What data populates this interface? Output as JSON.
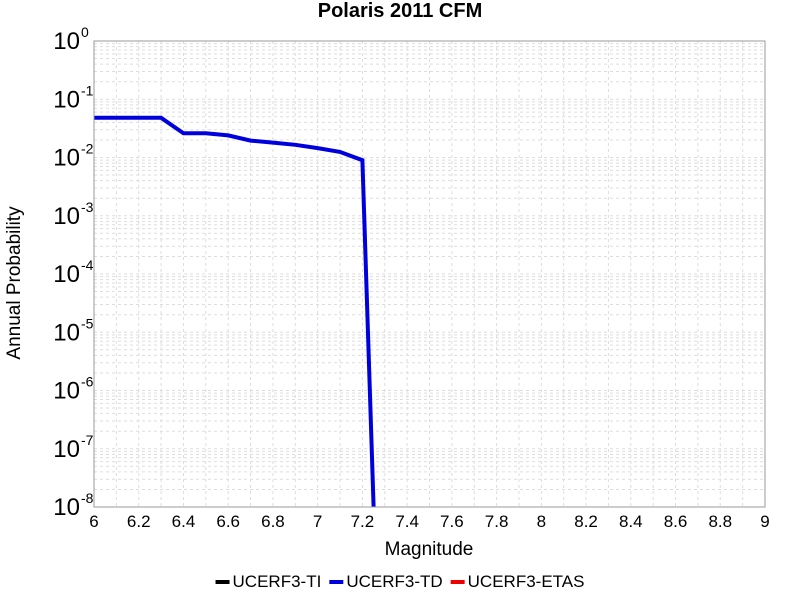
{
  "chart_data": {
    "type": "line",
    "title": "Polaris 2011 CFM",
    "xlabel": "Magnitude",
    "ylabel": "Annual Probability",
    "xlim": [
      6,
      9
    ],
    "ylim": [
      1e-08,
      1
    ],
    "yscale": "log",
    "grid": true,
    "legend_position": "bottom",
    "x_ticks": [
      "6",
      "6.2",
      "6.4",
      "6.6",
      "6.8",
      "7",
      "7.2",
      "7.4",
      "7.6",
      "7.8",
      "8",
      "8.2",
      "8.4",
      "8.6",
      "8.8",
      "9"
    ],
    "y_ticks": [
      {
        "base": "10",
        "exp": "0"
      },
      {
        "base": "10",
        "exp": "-1"
      },
      {
        "base": "10",
        "exp": "-2"
      },
      {
        "base": "10",
        "exp": "-3"
      },
      {
        "base": "10",
        "exp": "-4"
      },
      {
        "base": "10",
        "exp": "-5"
      },
      {
        "base": "10",
        "exp": "-6"
      },
      {
        "base": "10",
        "exp": "-7"
      },
      {
        "base": "10",
        "exp": "-8"
      }
    ],
    "series": [
      {
        "name": "UCERF3-TI",
        "color": "#000000",
        "x": [],
        "y": []
      },
      {
        "name": "UCERF3-TD",
        "color": "#0000dd",
        "x": [
          6.0,
          6.1,
          6.2,
          6.3,
          6.4,
          6.5,
          6.6,
          6.7,
          6.8,
          6.9,
          7.0,
          7.1,
          7.2,
          7.25
        ],
        "y": [
          0.048,
          0.048,
          0.048,
          0.048,
          0.026,
          0.026,
          0.024,
          0.0195,
          0.018,
          0.0165,
          0.0145,
          0.0125,
          0.009,
          1e-08
        ]
      },
      {
        "name": "UCERF3-ETAS",
        "color": "#ee0000",
        "x": [],
        "y": []
      }
    ]
  }
}
